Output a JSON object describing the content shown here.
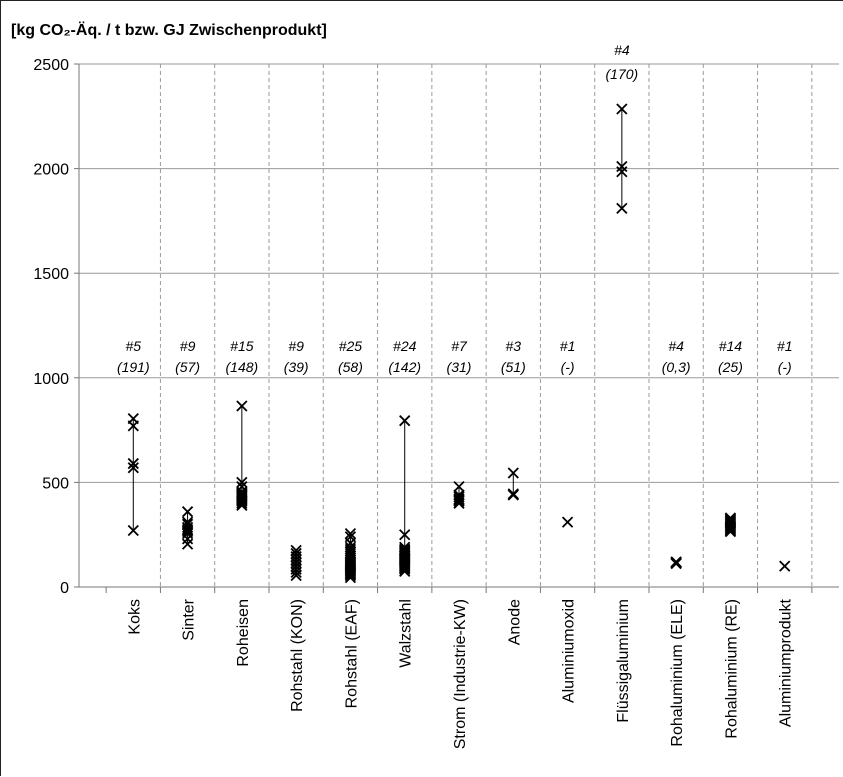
{
  "chart_data": {
    "type": "scatter",
    "title": "[kg CO₂-Äq. / t bzw. GJ Zwischenprodukt]",
    "ylim": [
      0,
      2500
    ],
    "yticks": [
      0,
      500,
      1000,
      1500,
      2000,
      2500
    ],
    "grid": true,
    "marker": "x",
    "categories": [
      "Koks",
      "Sinter",
      "Roheisen",
      "Rohstahl (KON)",
      "Rohstahl (EAF)",
      "Walzstahl",
      "Strom (Industrie-KW)",
      "Anode",
      "Aluminiumoxid",
      "Flüssigaluminium",
      "Rohaluminium (ELE)",
      "Rohaluminium (RE)",
      "Aluminiumprodukt"
    ],
    "counts": [
      "#5",
      "#9",
      "#15",
      "#9",
      "#25",
      "#24",
      "#7",
      "#3",
      "#1",
      "#4",
      "#4",
      "#14",
      "#1"
    ],
    "spreads": [
      "(191)",
      "(57)",
      "(148)",
      "(39)",
      "(58)",
      "(142)",
      "(31)",
      "(51)",
      "(-)",
      "(170)",
      "(0,3)",
      "(25)",
      "(-)"
    ],
    "values": [
      [
        270,
        570,
        590,
        770,
        805
      ],
      [
        205,
        230,
        255,
        265,
        275,
        285,
        300,
        310,
        360
      ],
      [
        390,
        400,
        410,
        415,
        420,
        425,
        430,
        435,
        440,
        445,
        450,
        455,
        480,
        500,
        865
      ],
      [
        55,
        70,
        85,
        100,
        115,
        130,
        145,
        160,
        175
      ],
      [
        45,
        55,
        60,
        65,
        70,
        75,
        80,
        85,
        90,
        95,
        100,
        105,
        110,
        115,
        120,
        130,
        140,
        150,
        160,
        170,
        180,
        190,
        210,
        240,
        255
      ],
      [
        75,
        85,
        90,
        95,
        100,
        105,
        110,
        115,
        120,
        125,
        130,
        135,
        140,
        145,
        150,
        155,
        160,
        165,
        170,
        175,
        180,
        190,
        250,
        795
      ],
      [
        400,
        410,
        415,
        420,
        430,
        440,
        480
      ],
      [
        440,
        445,
        545
      ],
      [
        310
      ],
      [
        1810,
        1985,
        2010,
        2285
      ],
      [
        112,
        115,
        118,
        120
      ],
      [
        265,
        270,
        275,
        280,
        285,
        290,
        295,
        300,
        305,
        310,
        315,
        320,
        325,
        330
      ],
      [
        100
      ]
    ]
  }
}
